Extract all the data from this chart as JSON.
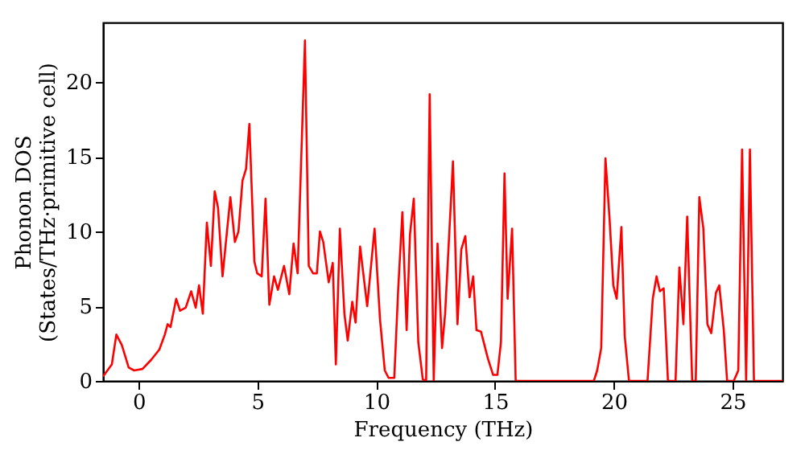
{
  "chart_data": {
    "type": "line",
    "xlabel": "Frequency (THz)",
    "ylabel": "Phonon DOS\n(States/THz·primitive cell)",
    "xlim": [
      -1.5,
      27.1
    ],
    "ylim": [
      0,
      24
    ],
    "xticks": [
      0,
      5,
      10,
      15,
      20,
      25
    ],
    "yticks": [
      0,
      5,
      10,
      15,
      20
    ],
    "grid": false,
    "marker": "none",
    "line_style": "solid",
    "series": [
      {
        "color": "#ff0000",
        "x": [
          -1.5,
          -1.13,
          -0.94,
          -0.71,
          -0.42,
          -0.19,
          0.16,
          0.52,
          0.87,
          1.1,
          1.22,
          1.34,
          1.58,
          1.74,
          1.98,
          2.21,
          2.4,
          2.54,
          2.7,
          2.87,
          3.04,
          3.2,
          3.34,
          3.53,
          3.86,
          4.05,
          4.2,
          4.37,
          4.52,
          4.66,
          4.87,
          4.99,
          5.18,
          5.34,
          5.5,
          5.7,
          5.86,
          6.12,
          6.34,
          6.52,
          6.69,
          7.0,
          7.16,
          7.34,
          7.5,
          7.63,
          7.77,
          8.0,
          8.17,
          8.3,
          8.47,
          8.66,
          8.8,
          8.99,
          9.13,
          9.32,
          9.62,
          9.93,
          10.16,
          10.36,
          10.52,
          10.76,
          10.92,
          11.1,
          11.28,
          11.42,
          11.58,
          11.77,
          11.96,
          12.1,
          12.25,
          12.42,
          12.58,
          12.77,
          12.9,
          13.23,
          13.42,
          13.58,
          13.75,
          13.93,
          14.08,
          14.22,
          14.41,
          14.7,
          14.92,
          15.1,
          15.25,
          15.4,
          15.53,
          15.72,
          15.87,
          17.5,
          19.16,
          19.3,
          19.47,
          19.65,
          19.82,
          19.98,
          20.12,
          20.32,
          20.46,
          20.64,
          21.42,
          21.64,
          21.8,
          21.94,
          22.1,
          22.28,
          22.6,
          22.76,
          22.93,
          23.09,
          23.3,
          23.45,
          23.6,
          23.77,
          23.94,
          24.1,
          24.3,
          24.44,
          24.63,
          24.77,
          25.05,
          25.24,
          25.4,
          25.57,
          25.73,
          25.9,
          27.1
        ],
        "values": [
          0.3,
          1.1,
          3.1,
          2.4,
          0.9,
          0.7,
          0.8,
          1.4,
          2.1,
          3.1,
          3.8,
          3.6,
          5.5,
          4.7,
          4.9,
          6.0,
          4.9,
          6.4,
          4.5,
          10.6,
          7.7,
          12.7,
          11.6,
          7.0,
          12.3,
          9.3,
          10.0,
          13.4,
          14.2,
          17.2,
          8.0,
          7.2,
          7.0,
          12.2,
          5.1,
          7.0,
          6.1,
          7.7,
          5.8,
          9.2,
          7.2,
          22.8,
          7.7,
          7.2,
          7.2,
          10.0,
          9.3,
          6.6,
          7.9,
          1.1,
          10.2,
          4.5,
          2.7,
          5.3,
          3.9,
          9.0,
          5.0,
          10.2,
          4.1,
          0.7,
          0.2,
          0.2,
          6.0,
          11.3,
          3.4,
          9.8,
          12.2,
          2.6,
          0.1,
          0,
          19.2,
          0,
          9.2,
          2.2,
          4.5,
          14.7,
          3.8,
          8.8,
          9.7,
          5.6,
          7.0,
          3.4,
          3.3,
          1.5,
          0.4,
          0.4,
          2.6,
          13.9,
          5.5,
          10.2,
          0,
          0,
          0,
          0.7,
          2.2,
          14.9,
          10.9,
          6.4,
          5.5,
          10.3,
          3.0,
          0,
          0,
          5.5,
          7.0,
          6.0,
          6.2,
          0,
          0,
          7.6,
          3.8,
          11.0,
          0,
          0,
          12.3,
          10.2,
          3.8,
          3.2,
          5.9,
          6.4,
          3.4,
          0,
          0,
          0.7,
          15.5,
          0,
          15.5,
          0,
          0
        ]
      }
    ]
  }
}
